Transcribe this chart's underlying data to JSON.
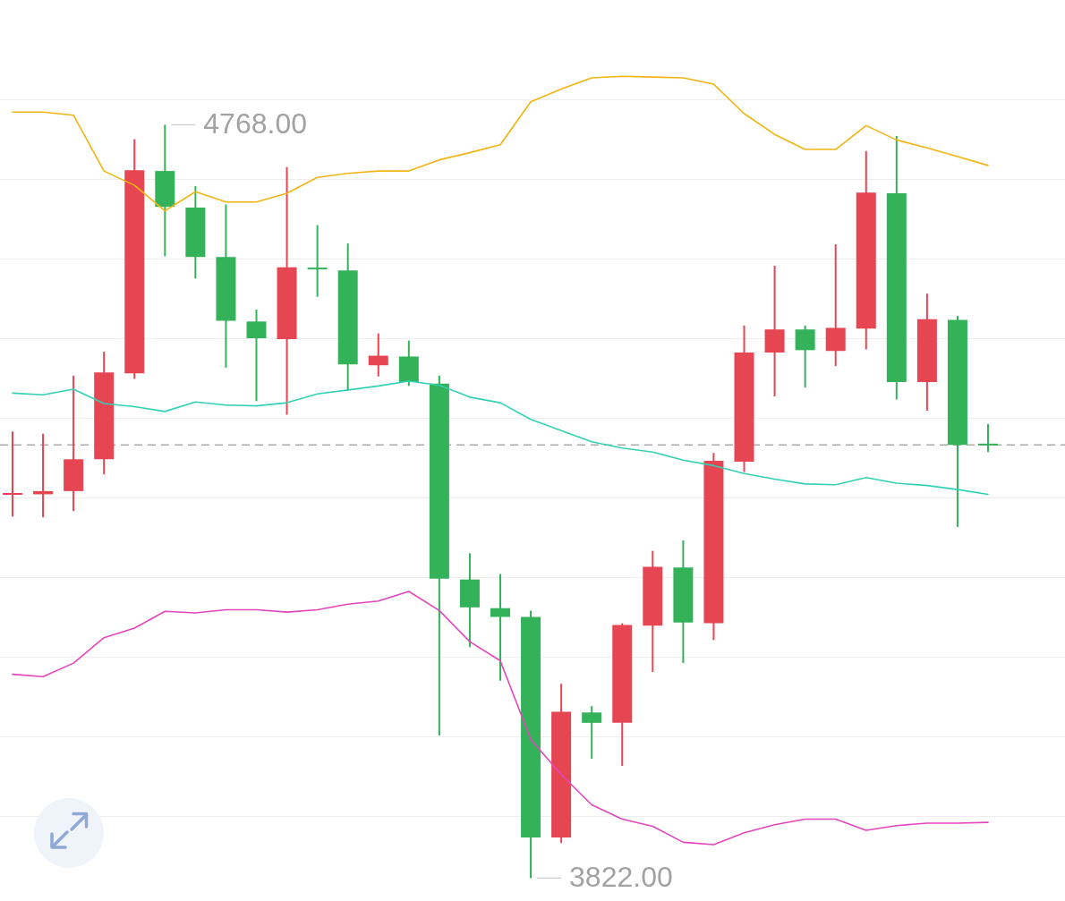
{
  "chart_data": {
    "type": "candlestick",
    "categories": [
      null,
      null,
      null,
      null,
      null,
      null,
      null,
      null,
      null,
      null,
      null,
      null,
      null,
      null,
      null,
      null,
      null,
      null,
      null,
      null,
      null,
      null,
      null,
      null,
      null,
      null,
      null,
      null,
      null,
      null,
      null,
      null,
      null
    ],
    "ohlc": [
      [
        4304,
        4383,
        4276,
        4305
      ],
      [
        4304,
        4380,
        4275,
        4308
      ],
      [
        4308,
        4453,
        4283,
        4348
      ],
      [
        4348,
        4483,
        4329,
        4457
      ],
      [
        4456,
        4750,
        4449,
        4711
      ],
      [
        4710,
        4768,
        4603,
        4665
      ],
      [
        4664,
        4691,
        4575,
        4602
      ],
      [
        4602,
        4668,
        4463,
        4522
      ],
      [
        4521,
        4536,
        4421,
        4500
      ],
      [
        4499,
        4715,
        4404,
        4589
      ],
      [
        4588,
        4642,
        4552,
        4587
      ],
      [
        4585,
        4619,
        4434,
        4467
      ],
      [
        4466,
        4506,
        4452,
        4478
      ],
      [
        4477,
        4497,
        4440,
        4445
      ],
      [
        4443,
        4453,
        4001,
        4198
      ],
      [
        4197,
        4230,
        4112,
        4162
      ],
      [
        4161,
        4204,
        4070,
        4150
      ],
      [
        4150,
        4158,
        3822,
        3873
      ],
      [
        3873,
        4066,
        3866,
        4031
      ],
      [
        4030,
        4038,
        3972,
        4017
      ],
      [
        4017,
        4142,
        3963,
        4140
      ],
      [
        4139,
        4233,
        4081,
        4213
      ],
      [
        4212,
        4246,
        4092,
        4143
      ],
      [
        4142,
        4356,
        4121,
        4346
      ],
      [
        4345,
        4516,
        4332,
        4482
      ],
      [
        4482,
        4591,
        4427,
        4511
      ],
      [
        4511,
        4516,
        4438,
        4485
      ],
      [
        4484,
        4618,
        4465,
        4513
      ],
      [
        4512,
        4735,
        4486,
        4683
      ],
      [
        4682,
        4754,
        4423,
        4445
      ],
      [
        4445,
        4556,
        4409,
        4524
      ],
      [
        4523,
        4528,
        4263,
        4366
      ],
      [
        4367,
        4392,
        4357,
        4366
      ]
    ],
    "colors": [
      "#e64552",
      "#e64552",
      "#e64552",
      "#e64552",
      "#e64552",
      "#34b25a",
      "#34b25a",
      "#34b25a",
      "#34b25a",
      "#e64552",
      "#34b25a",
      "#34b25a",
      "#e64552",
      "#34b25a",
      "#34b25a",
      "#34b25a",
      "#34b25a",
      "#34b25a",
      "#e64552",
      "#34b25a",
      "#e64552",
      "#e64552",
      "#34b25a",
      "#e64552",
      "#e64552",
      "#e64552",
      "#34b25a",
      "#e64552",
      "#e64552",
      "#34b25a",
      "#e64552",
      "#34b25a",
      "#34b25a"
    ],
    "series": [
      {
        "type": "line",
        "color": "#f2b411",
        "values": [
          4784,
          4784,
          4780,
          4710,
          4692,
          4660,
          4684,
          4671,
          4671,
          4682,
          4702,
          4707,
          4710,
          4710,
          4724,
          4733,
          4743,
          4797,
          4813,
          4827,
          4829,
          4828,
          4827,
          4819,
          4782,
          4756,
          4737,
          4737,
          4767,
          4749,
          4739,
          4728,
          4717
        ]
      },
      {
        "type": "line",
        "color": "#33d1b4",
        "values": [
          4431,
          4429,
          4436,
          4418,
          4414,
          4408,
          4420,
          4416,
          4415,
          4419,
          4430,
          4435,
          4440,
          4446,
          4441,
          4426,
          4419,
          4398,
          4384,
          4370,
          4362,
          4357,
          4347,
          4340,
          4330,
          4323,
          4317,
          4316,
          4325,
          4318,
          4315,
          4310,
          4304
        ]
      },
      {
        "type": "line",
        "color": "#e445bd",
        "values": [
          4078,
          4075,
          4092,
          4124,
          4136,
          4157,
          4155,
          4159,
          4159,
          4156,
          4159,
          4166,
          4170,
          4182,
          4158,
          4119,
          4095,
          3996,
          3952,
          3914,
          3896,
          3887,
          3867,
          3864,
          3879,
          3889,
          3896,
          3896,
          3882,
          3888,
          3891,
          3891,
          3892
        ]
      }
    ],
    "yticks": [
      {
        "value": 3900,
        "label": null
      },
      {
        "value": 4000,
        "label": null
      },
      {
        "value": 4100,
        "label": null
      },
      {
        "value": 4200,
        "label": null
      },
      {
        "value": 4300,
        "label": null
      },
      {
        "value": 4400,
        "label": null
      },
      {
        "value": 4500,
        "label": null
      },
      {
        "value": 4600,
        "label": null
      },
      {
        "value": 4700,
        "label": null
      },
      {
        "value": 4800,
        "label": null
      }
    ],
    "grid": "y",
    "ref_lines": [
      {
        "axis": "y",
        "value": 4366,
        "color": "#ababab",
        "line_style": "dashed"
      }
    ],
    "annotations": [
      "4768.00",
      "3822.00"
    ]
  }
}
